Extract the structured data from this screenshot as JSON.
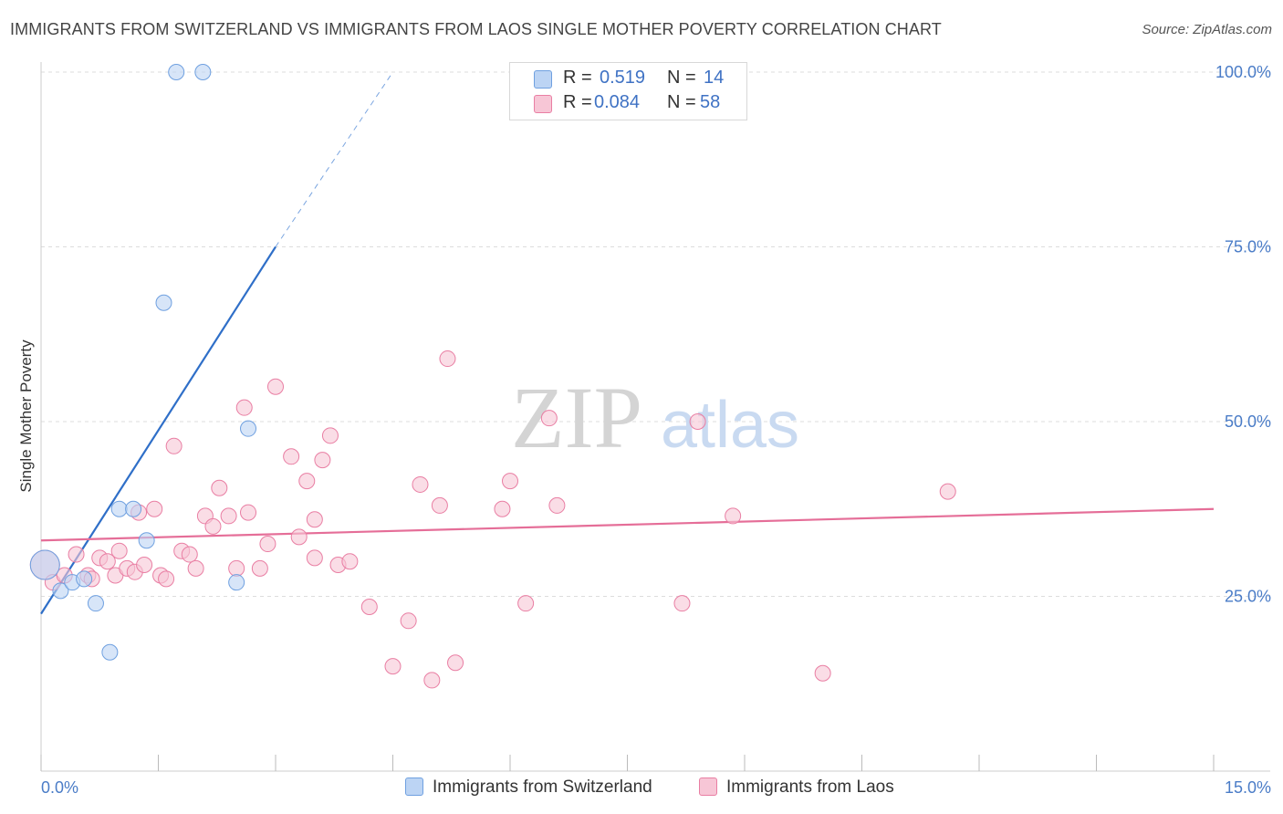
{
  "title": "IMMIGRANTS FROM SWITZERLAND VS IMMIGRANTS FROM LAOS SINGLE MOTHER POVERTY CORRELATION CHART",
  "source": "Source: ZipAtlas.com",
  "watermark": {
    "zip": "ZIP",
    "atlas": "atlas"
  },
  "legend": {
    "rows": [
      {
        "r_label": "R =",
        "r_value": "0.519",
        "n_label": "N =",
        "n_value": "14"
      },
      {
        "r_label": "R =",
        "r_value": "0.084",
        "n_label": "N =",
        "n_value": "58"
      }
    ]
  },
  "bottom_legend": [
    "Immigrants from Switzerland",
    "Immigrants from Laos"
  ],
  "chart_data": {
    "type": "scatter",
    "title": "IMMIGRANTS FROM SWITZERLAND VS IMMIGRANTS FROM LAOS SINGLE MOTHER POVERTY CORRELATION CHART",
    "xlabel": "",
    "ylabel": "Single Mother Poverty",
    "xlim": [
      0,
      15
    ],
    "ylim": [
      0,
      100
    ],
    "x_tick_labels": [
      "0.0%",
      "15.0%"
    ],
    "y_ticks": [
      25,
      50,
      75,
      100
    ],
    "y_tick_labels": [
      "25.0%",
      "50.0%",
      "75.0%",
      "100.0%"
    ],
    "grid": "horizontal dashed",
    "legend_position": "top-center",
    "series": [
      {
        "name": "Immigrants from Switzerland",
        "color": "#6fa0e0",
        "fill": "#bcd4f4",
        "points": [
          [
            0.05,
            29.5
          ],
          [
            0.25,
            25.8
          ],
          [
            0.4,
            27.0
          ],
          [
            0.55,
            27.5
          ],
          [
            0.7,
            24.0
          ],
          [
            0.88,
            17.0
          ],
          [
            1.0,
            37.5
          ],
          [
            1.18,
            37.5
          ],
          [
            1.35,
            33.0
          ],
          [
            1.57,
            67.0
          ],
          [
            1.73,
            100.0
          ],
          [
            2.07,
            100.0
          ],
          [
            2.5,
            27.0
          ],
          [
            2.65,
            49.0
          ]
        ],
        "trendline": {
          "x": [
            0,
            3.0
          ],
          "y": [
            22.5,
            75.0
          ],
          "dashed_extension": {
            "x": [
              3.0,
              4.5
            ],
            "y": [
              75.0,
              100.0
            ]
          }
        }
      },
      {
        "name": "Immigrants from Laos",
        "color": "#e97ea3",
        "fill": "#f7c6d6",
        "points": [
          [
            0.05,
            29.5
          ],
          [
            0.15,
            27.0
          ],
          [
            0.3,
            28.0
          ],
          [
            0.45,
            31.0
          ],
          [
            0.6,
            28.0
          ],
          [
            0.65,
            27.5
          ],
          [
            0.75,
            30.5
          ],
          [
            0.85,
            30.0
          ],
          [
            0.95,
            28.0
          ],
          [
            1.0,
            31.5
          ],
          [
            1.1,
            29.0
          ],
          [
            1.2,
            28.5
          ],
          [
            1.25,
            37.0
          ],
          [
            1.32,
            29.5
          ],
          [
            1.45,
            37.5
          ],
          [
            1.53,
            28.0
          ],
          [
            1.6,
            27.5
          ],
          [
            1.7,
            46.5
          ],
          [
            1.8,
            31.5
          ],
          [
            1.9,
            31.0
          ],
          [
            1.98,
            29.0
          ],
          [
            2.1,
            36.5
          ],
          [
            2.2,
            35.0
          ],
          [
            2.28,
            40.5
          ],
          [
            2.4,
            36.5
          ],
          [
            2.5,
            29.0
          ],
          [
            2.6,
            52.0
          ],
          [
            2.65,
            37.0
          ],
          [
            2.8,
            29.0
          ],
          [
            2.9,
            32.5
          ],
          [
            3.0,
            55.0
          ],
          [
            3.2,
            45.0
          ],
          [
            3.3,
            33.5
          ],
          [
            3.4,
            41.5
          ],
          [
            3.5,
            36.0
          ],
          [
            3.5,
            30.5
          ],
          [
            3.6,
            44.5
          ],
          [
            3.7,
            48.0
          ],
          [
            3.8,
            29.5
          ],
          [
            3.95,
            30.0
          ],
          [
            4.2,
            23.5
          ],
          [
            4.5,
            15.0
          ],
          [
            4.7,
            21.5
          ],
          [
            4.85,
            41.0
          ],
          [
            5.0,
            13.0
          ],
          [
            5.1,
            38.0
          ],
          [
            5.2,
            59.0
          ],
          [
            5.3,
            15.5
          ],
          [
            5.9,
            37.5
          ],
          [
            6.0,
            41.5
          ],
          [
            6.2,
            24.0
          ],
          [
            6.5,
            50.5
          ],
          [
            6.6,
            38.0
          ],
          [
            8.2,
            24.0
          ],
          [
            8.4,
            50.0
          ],
          [
            8.85,
            36.5
          ],
          [
            10.0,
            14.0
          ],
          [
            11.6,
            40.0
          ]
        ],
        "trendline": {
          "x": [
            0,
            15
          ],
          "y": [
            33.0,
            37.5
          ]
        }
      }
    ]
  }
}
